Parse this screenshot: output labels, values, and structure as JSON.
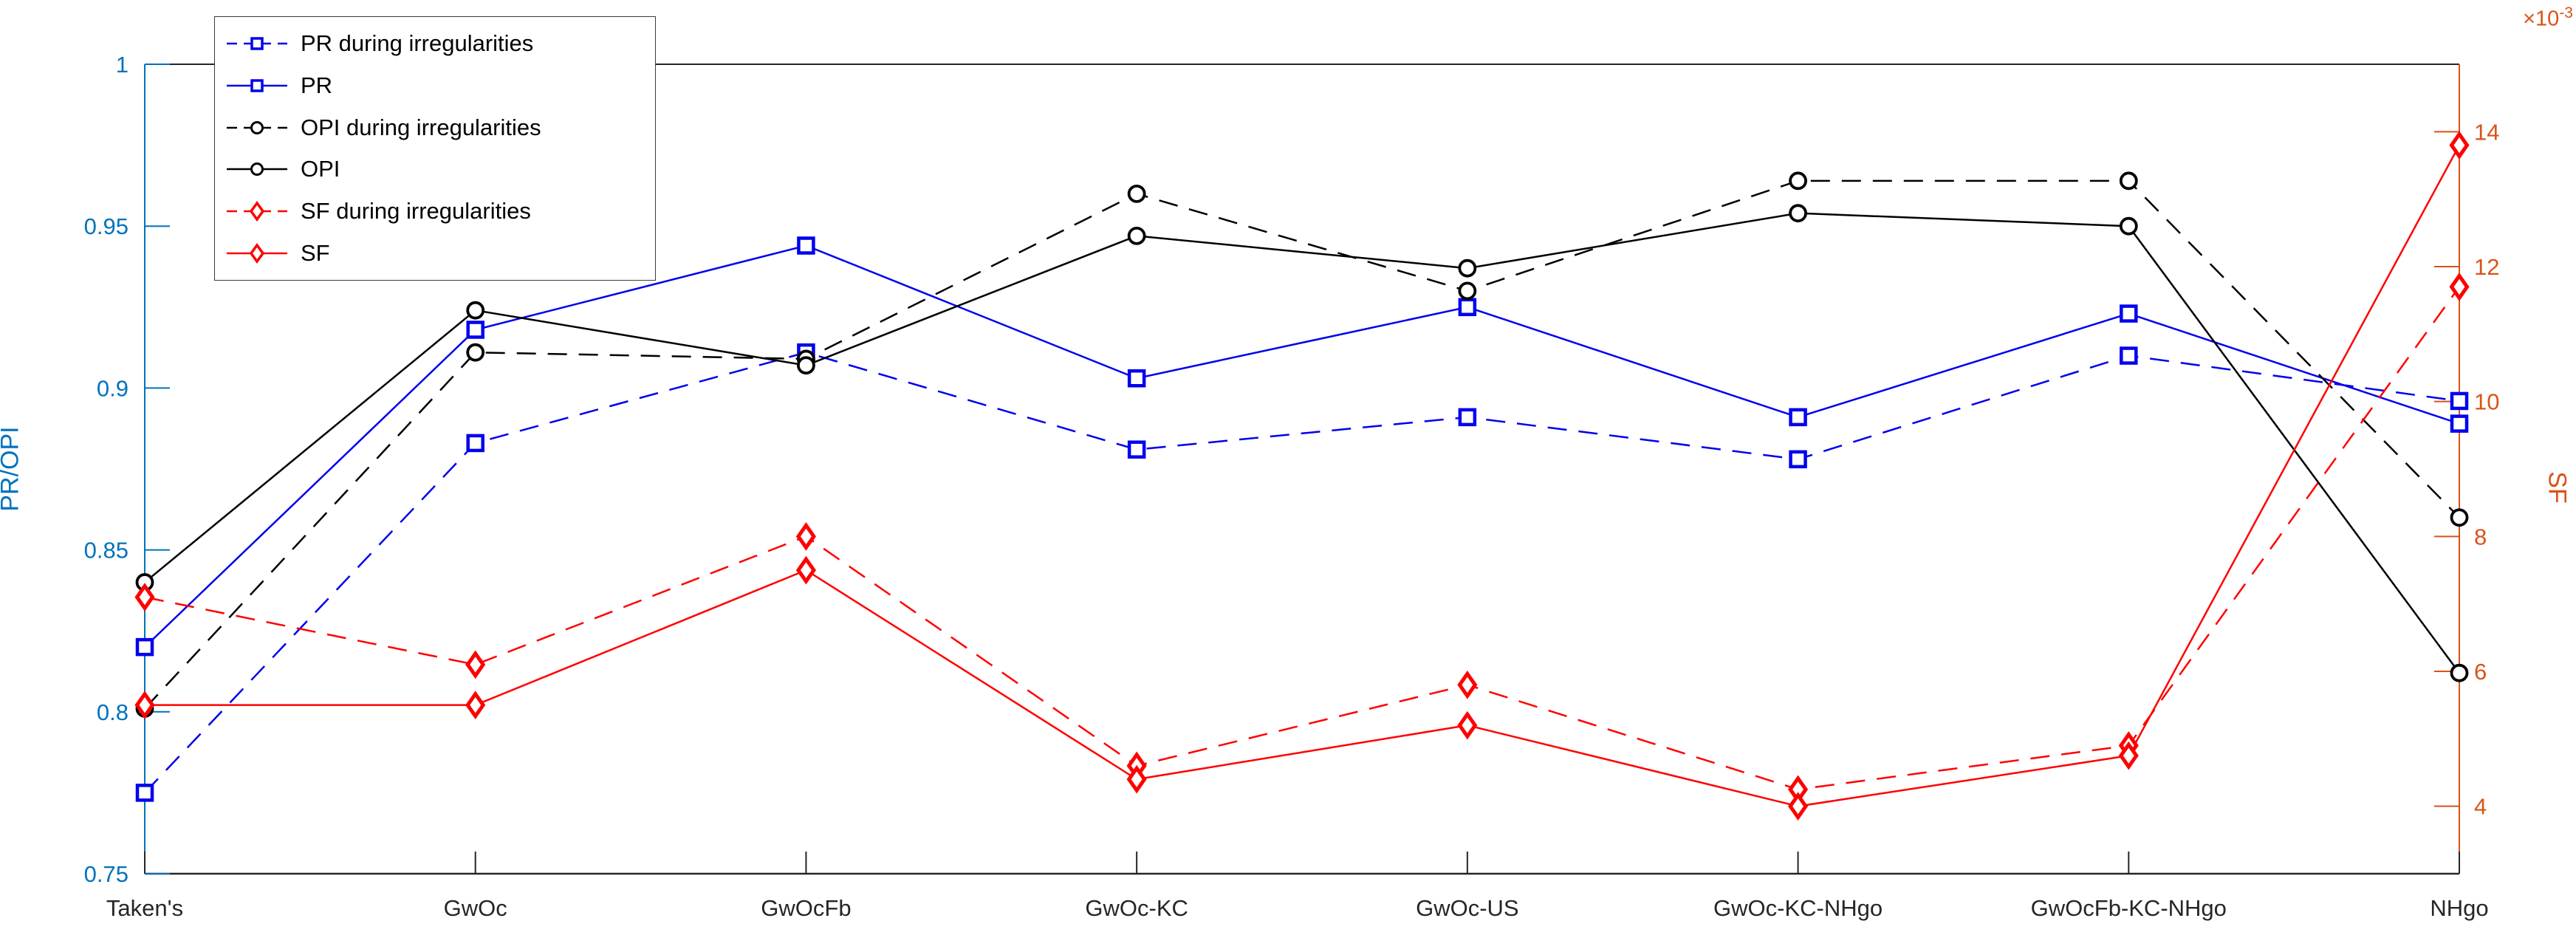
{
  "figure": {
    "background": "#ffffff"
  },
  "chart_data": {
    "type": "line",
    "categories": [
      "Taken's",
      "GwOc",
      "GwOcFb",
      "GwOc-KC",
      "GwOc-US",
      "GwOc-KC-NHgo",
      "GwOcFb-KC-NHgo",
      "NHgo"
    ],
    "series": [
      {
        "name": "PR during irregularities",
        "axis": "left",
        "color": "#0000ee",
        "line_style": "dashed",
        "marker": "square",
        "values": [
          0.775,
          0.883,
          0.911,
          0.881,
          0.891,
          0.878,
          0.91,
          0.896
        ]
      },
      {
        "name": "PR",
        "axis": "left",
        "color": "#0000ee",
        "line_style": "solid",
        "marker": "square",
        "values": [
          0.82,
          0.918,
          0.944,
          0.903,
          0.925,
          0.891,
          0.923,
          0.889
        ]
      },
      {
        "name": "OPI during irregularities",
        "axis": "left",
        "color": "#000000",
        "line_style": "dashed",
        "marker": "circle",
        "values": [
          0.801,
          0.911,
          0.909,
          0.96,
          0.93,
          0.964,
          0.964,
          0.86
        ]
      },
      {
        "name": "OPI",
        "axis": "left",
        "color": "#000000",
        "line_style": "solid",
        "marker": "circle",
        "values": [
          0.84,
          0.924,
          0.907,
          0.947,
          0.937,
          0.954,
          0.95,
          0.812
        ]
      },
      {
        "name": "SF during irregularities",
        "axis": "right",
        "color": "#ff0000",
        "line_style": "dashed",
        "marker": "diamond",
        "values": [
          7.1,
          6.1,
          8.0,
          4.6,
          5.8,
          4.25,
          4.9,
          11.7
        ]
      },
      {
        "name": "SF",
        "axis": "right",
        "color": "#ff0000",
        "line_style": "solid",
        "marker": "diamond",
        "values": [
          5.5,
          5.5,
          7.5,
          4.4,
          5.2,
          4.0,
          4.75,
          13.8
        ]
      }
    ],
    "axes": {
      "left": {
        "label": "PR/OPI",
        "color": "#0072BD",
        "min": 0.75,
        "max": 1.0,
        "ticks": [
          1,
          0.95,
          0.9,
          0.85,
          0.8,
          0.75
        ],
        "tick_labels": [
          "1",
          "0.95",
          "0.9",
          "0.85",
          "0.8",
          "0.75"
        ]
      },
      "right": {
        "label": "SF",
        "color": "#D95319",
        "min": 3,
        "max": 15,
        "ticks": [
          14,
          12,
          10,
          8,
          6,
          4
        ],
        "tick_labels": [
          "14",
          "12",
          "10",
          "8",
          "6",
          "4"
        ],
        "exponent_prefix": "×10",
        "exponent_sup": "-3"
      },
      "x": {
        "color": "#262626"
      }
    },
    "legend": {
      "position": "top-left",
      "entries": [
        "PR during irregularities",
        "PR",
        "OPI during irregularities",
        "OPI",
        "SF during irregularities",
        "SF"
      ]
    },
    "grid": false,
    "xlabel": "",
    "title": ""
  }
}
